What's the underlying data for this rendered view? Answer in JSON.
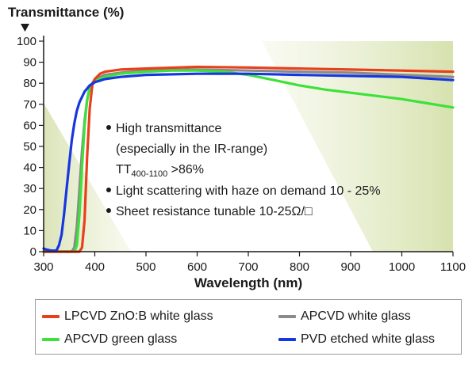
{
  "chart_data": {
    "type": "line",
    "ylabel": "Transmittance (%)",
    "xlabel": "Wavelength (nm)",
    "xlim": [
      300,
      1100
    ],
    "ylim": [
      0,
      100
    ],
    "xticks": [
      "300",
      "400",
      "500",
      "600",
      "700",
      "800",
      "900",
      "1000",
      "1100"
    ],
    "yticks": [
      "0",
      "10",
      "20",
      "30",
      "40",
      "50",
      "60",
      "70",
      "80",
      "90",
      "100"
    ],
    "grid": false,
    "legend_position": "bottom",
    "annotations": {
      "bullet1_line1": "High transmittance",
      "bullet1_line2": "(especially in the IR-range)",
      "tt_prefix": "TT",
      "tt_sub": "400-1100",
      "tt_suffix": " >86%",
      "bullet2": "Light scattering with haze on demand 10 - 25%",
      "bullet3": "Sheet resistance tunable 10-25Ω/□"
    },
    "series": [
      {
        "name": "LPCVD ZnO:B white glass",
        "color": "#e8401c",
        "x": [
          300,
          370,
          375,
          380,
          385,
          390,
          395,
          400,
          410,
          420,
          450,
          500,
          600,
          700,
          800,
          900,
          1000,
          1100
        ],
        "y": [
          0,
          0,
          2,
          15,
          45,
          68,
          79,
          82,
          84.5,
          85.5,
          86.5,
          87,
          87.8,
          87.5,
          87,
          86.5,
          86,
          85.5
        ]
      },
      {
        "name": "APCVD white glass",
        "color": "#8a8a8a",
        "x": [
          300,
          355,
          360,
          365,
          370,
          375,
          380,
          385,
          390,
          400,
          420,
          450,
          500,
          600,
          700,
          800,
          900,
          1000,
          1100
        ],
        "y": [
          0,
          0,
          2,
          12,
          30,
          48,
          62,
          72,
          78,
          82,
          84,
          85,
          86,
          86.5,
          86,
          85.5,
          85,
          84,
          83
        ]
      },
      {
        "name": "APCVD green glass",
        "color": "#3de13a",
        "x": [
          300,
          360,
          365,
          370,
          375,
          380,
          385,
          390,
          400,
          420,
          450,
          500,
          550,
          600,
          650,
          700,
          750,
          800,
          850,
          900,
          950,
          1000,
          1050,
          1100
        ],
        "y": [
          0,
          0,
          3,
          18,
          40,
          60,
          72,
          78,
          81,
          83,
          84.5,
          85.5,
          86,
          86,
          85.5,
          84,
          81.5,
          79,
          77,
          75.5,
          74,
          72.5,
          70.5,
          68.5
        ]
      },
      {
        "name": "PVD etched white glass",
        "color": "#1736e0",
        "x": [
          300,
          305,
          315,
          325,
          330,
          335,
          340,
          345,
          350,
          355,
          360,
          365,
          370,
          380,
          390,
          400,
          420,
          450,
          500,
          600,
          700,
          800,
          900,
          1000,
          1100
        ],
        "y": [
          1.5,
          1,
          0.5,
          0.5,
          3,
          8,
          18,
          30,
          42,
          53,
          61,
          67,
          71,
          76,
          79,
          80.5,
          82,
          83,
          84,
          84.5,
          84.5,
          84,
          83.5,
          83,
          81.5
        ]
      }
    ]
  }
}
